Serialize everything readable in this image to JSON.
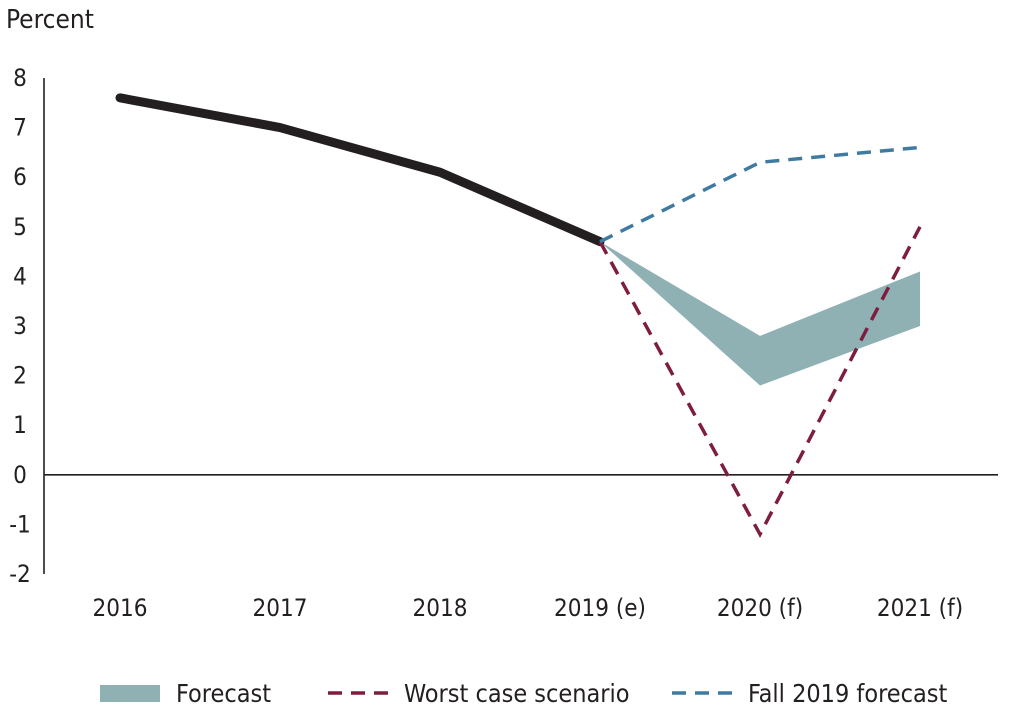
{
  "chart_data": {
    "type": "line",
    "ylabel": "Percent",
    "categories": [
      "2016",
      "2017",
      "2018",
      "2019 (e)",
      "2020 (f)",
      "2021 (f)"
    ],
    "ylim": [
      -2,
      8
    ],
    "yticks": [
      "8",
      "7",
      "6",
      "5",
      "4",
      "3",
      "2",
      "1",
      "0",
      "-1",
      "-2"
    ],
    "grid": false,
    "legend_position": "bottom",
    "series": [
      {
        "values": [
          7.6,
          7.0,
          6.1,
          4.7,
          null,
          null
        ],
        "color": "#231f20",
        "style": "solid"
      },
      {
        "name": "Forecast",
        "style": "band",
        "color": "#8fb1b3",
        "x_index": [
          3,
          4,
          5
        ],
        "low": [
          4.7,
          1.8,
          3.0
        ],
        "high": [
          4.7,
          2.8,
          4.1
        ]
      },
      {
        "name": "Worst case scenario",
        "style": "dashed",
        "color": "#7d1d3f",
        "values": [
          null,
          null,
          null,
          4.7,
          -1.2,
          5.0
        ]
      },
      {
        "name": "Fall 2019 forecast",
        "style": "dashed",
        "color": "#3f7ba1",
        "values": [
          null,
          null,
          null,
          4.7,
          6.3,
          6.6
        ]
      }
    ]
  }
}
